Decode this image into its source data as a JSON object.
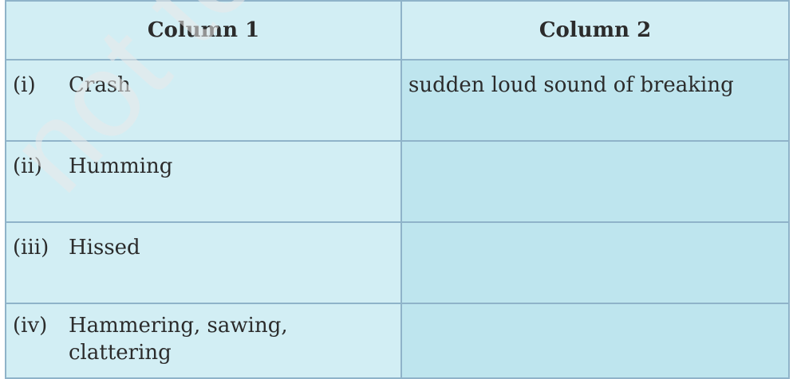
{
  "table": {
    "headers": [
      "Column 1",
      "Column 2"
    ],
    "rows": [
      {
        "roman": "(i)",
        "term": "Crash",
        "meaning": "sudden loud sound of breaking"
      },
      {
        "roman": "(ii)",
        "term": "Humming",
        "meaning": ""
      },
      {
        "roman": "(iii)",
        "term": "Hissed",
        "meaning": ""
      },
      {
        "roman": "(iv)",
        "term": "Hammering, sawing, clattering",
        "meaning": ""
      }
    ]
  },
  "watermark": {
    "text": "not to",
    "color": "#e9e9e9"
  }
}
